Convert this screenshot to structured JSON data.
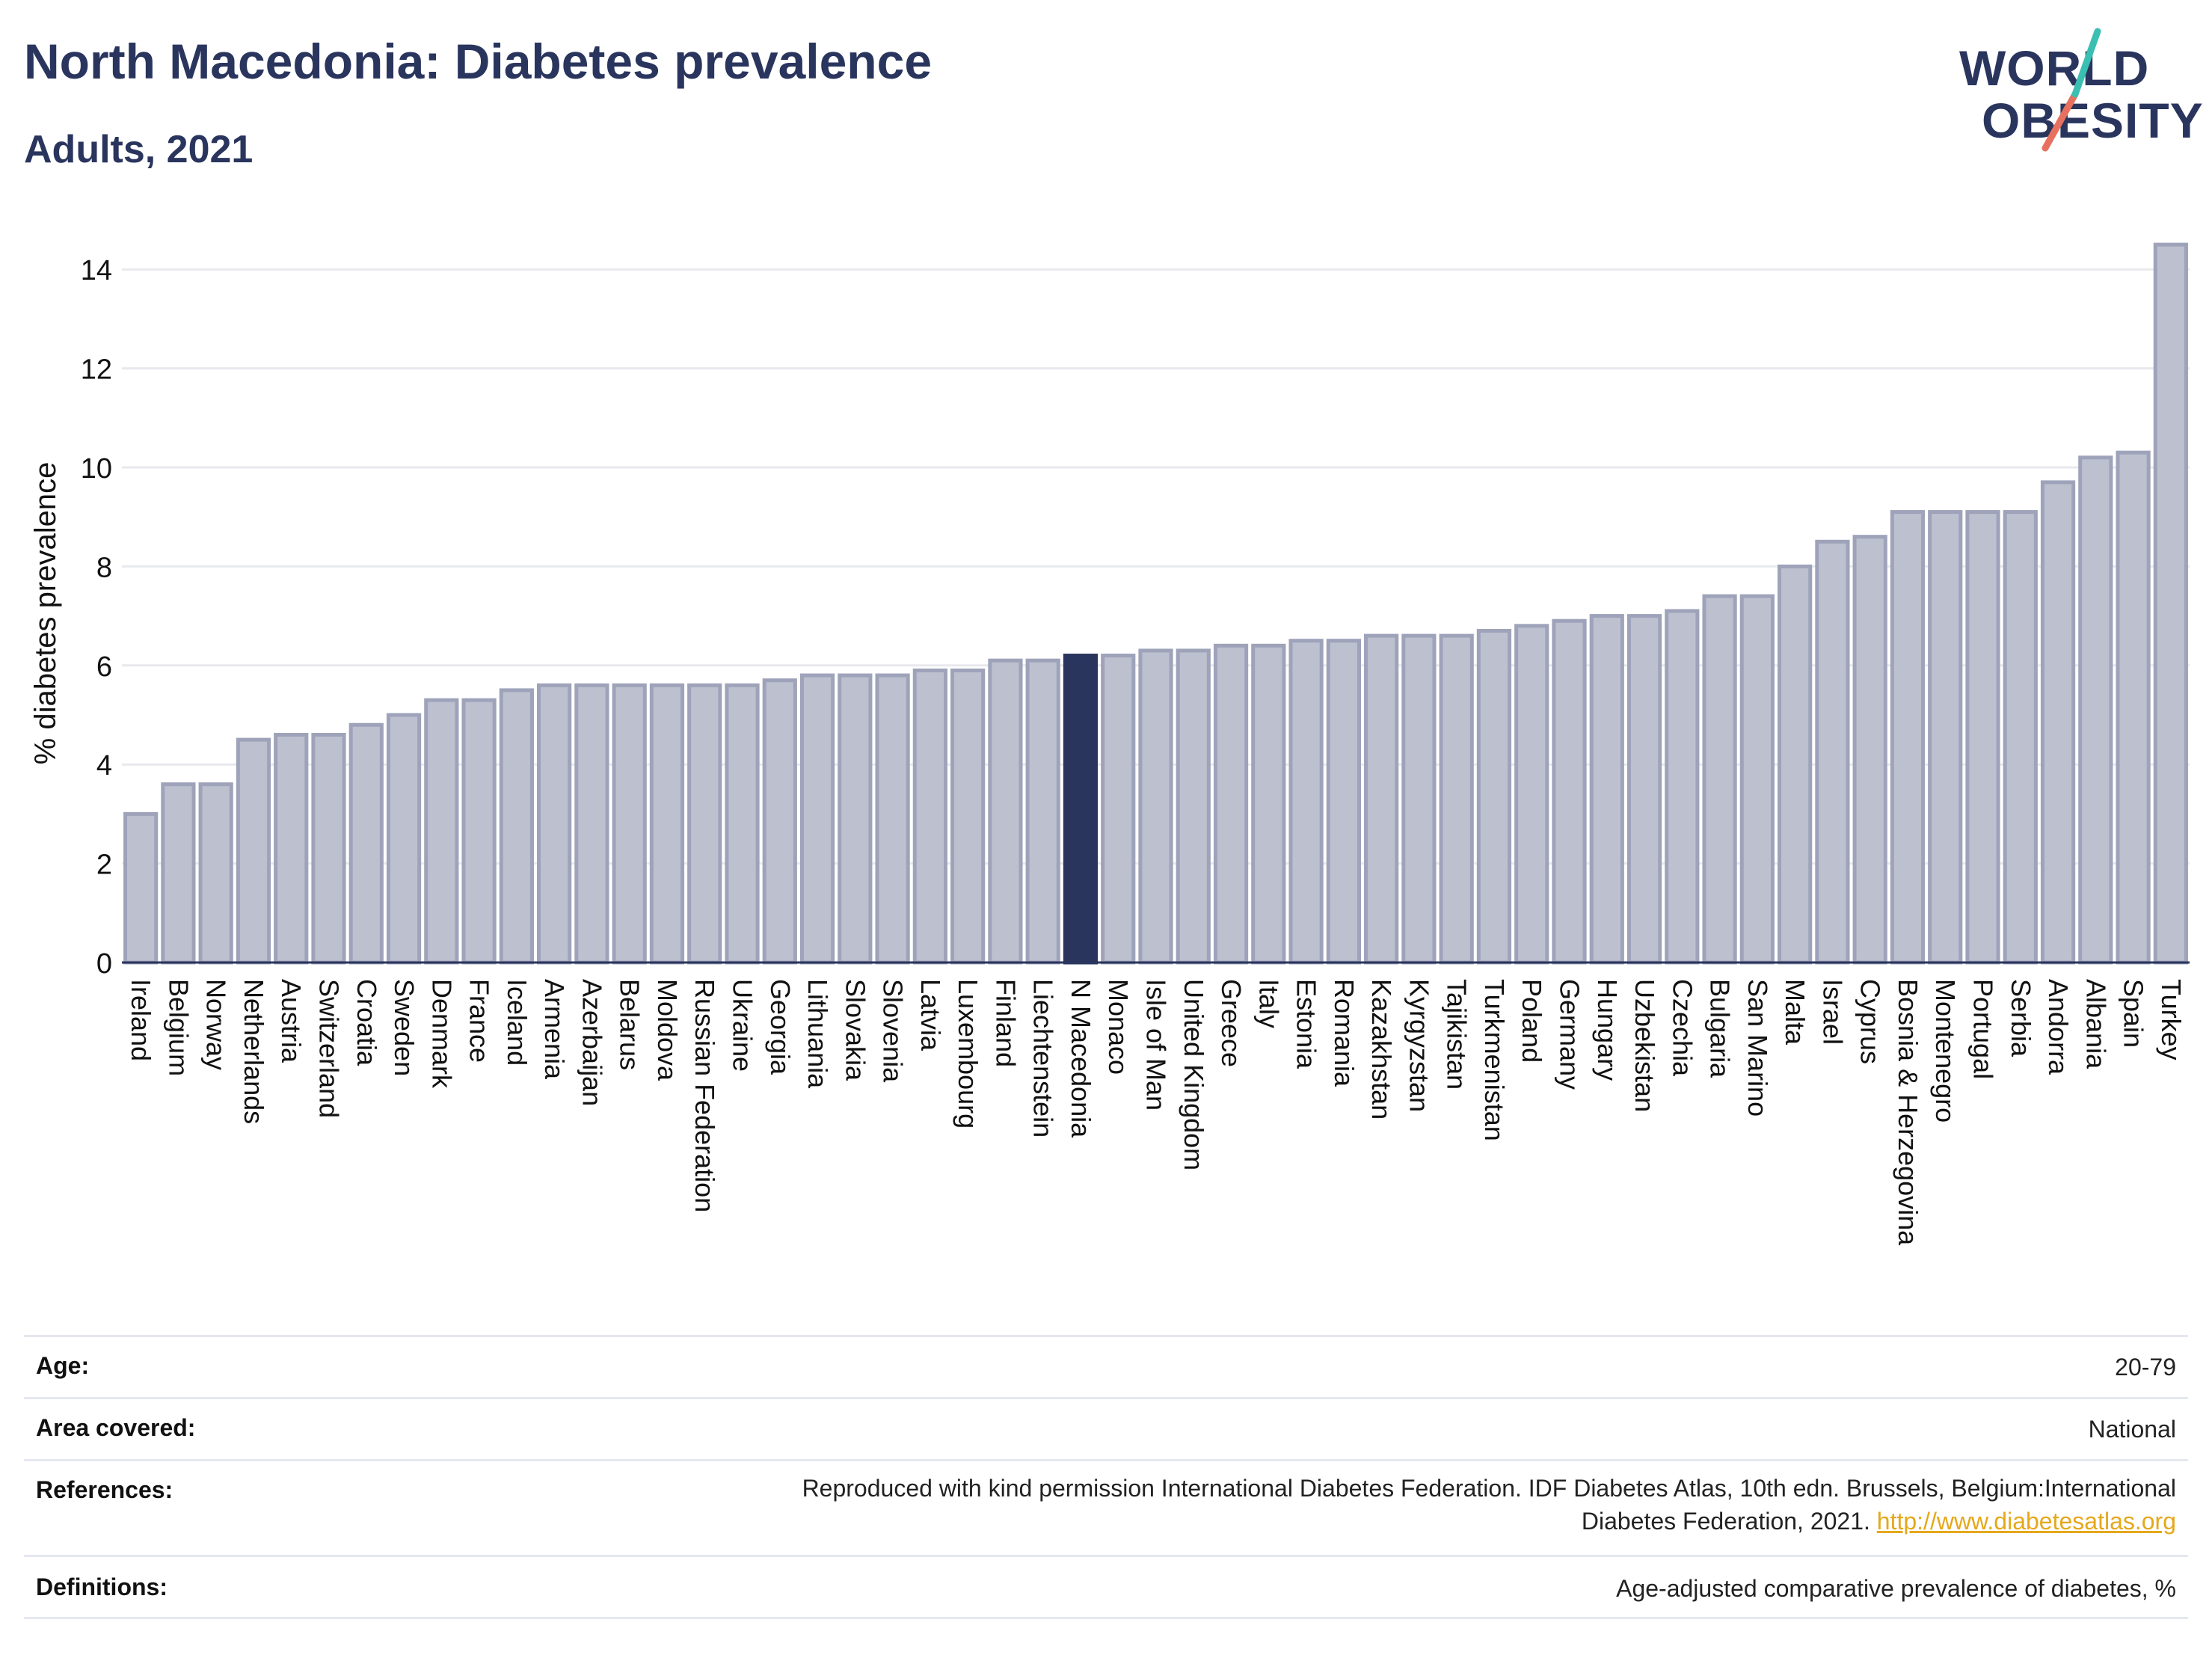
{
  "header": {
    "title": "North Macedonia: Diabetes prevalence",
    "subtitle": "Adults, 2021"
  },
  "logo": {
    "line1": "WORLD",
    "line2": "OBESITY"
  },
  "colors": {
    "bar": "#bcc0cf",
    "bar_edge": "#9ea3ba",
    "highlight": "#2a355e",
    "text": "#2a355e",
    "logo_teal": "#3bbfb2",
    "logo_coral": "#e8705e",
    "link": "#e5a81b"
  },
  "chart_data": {
    "type": "bar",
    "ylabel": "% diabetes prevalence",
    "ylim": [
      0,
      15
    ],
    "yticks": [
      0,
      2,
      4,
      6,
      8,
      10,
      12,
      14
    ],
    "grid": true,
    "highlight": "N Macedonia",
    "categories": [
      "Ireland",
      "Belgium",
      "Norway",
      "Netherlands",
      "Austria",
      "Switzerland",
      "Croatia",
      "Sweden",
      "Denmark",
      "France",
      "Iceland",
      "Armenia",
      "Azerbaijan",
      "Belarus",
      "Moldova",
      "Russian Federation",
      "Ukraine",
      "Georgia",
      "Lithuania",
      "Slovakia",
      "Slovenia",
      "Latvia",
      "Luxembourg",
      "Finland",
      "Liechtenstein",
      "N Macedonia",
      "Monaco",
      "Isle of Man",
      "United Kingdom",
      "Greece",
      "Italy",
      "Estonia",
      "Romania",
      "Kazakhstan",
      "Kyrgyzstan",
      "Tajikistan",
      "Turkmenistan",
      "Poland",
      "Germany",
      "Hungary",
      "Uzbekistan",
      "Czechia",
      "Bulgaria",
      "San Marino",
      "Malta",
      "Israel",
      "Cyprus",
      "Bosnia & Herzegovina",
      "Montenegro",
      "Portugal",
      "Serbia",
      "Andorra",
      "Albania",
      "Spain",
      "Turkey"
    ],
    "values": [
      3.0,
      3.6,
      3.6,
      4.5,
      4.6,
      4.6,
      4.8,
      5.0,
      5.3,
      5.3,
      5.5,
      5.6,
      5.6,
      5.6,
      5.6,
      5.6,
      5.6,
      5.7,
      5.8,
      5.8,
      5.8,
      5.9,
      5.9,
      6.1,
      6.1,
      6.2,
      6.2,
      6.3,
      6.3,
      6.4,
      6.4,
      6.5,
      6.5,
      6.6,
      6.6,
      6.6,
      6.7,
      6.8,
      6.9,
      7.0,
      7.0,
      7.1,
      7.4,
      7.4,
      8.0,
      8.5,
      8.6,
      9.1,
      9.1,
      9.1,
      9.1,
      9.7,
      10.2,
      10.3,
      14.5
    ]
  },
  "meta": {
    "age_label": "Age:",
    "age_value": "20-79",
    "area_label": "Area covered:",
    "area_value": "National",
    "references_label": "References:",
    "references_line1": "Reproduced with kind permission International Diabetes Federation.  IDF Diabetes Atlas, 10th edn. Brussels, Belgium:International",
    "references_line2": "Diabetes Federation, 2021.",
    "references_link": "http://www.diabetesatlas.org",
    "definitions_label": "Definitions:",
    "definitions_value": "Age-adjusted comparative prevalence of diabetes, %"
  }
}
